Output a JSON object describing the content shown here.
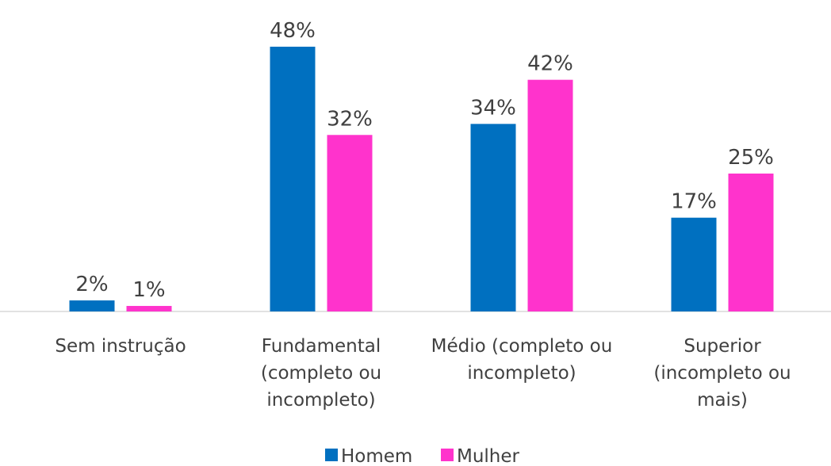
{
  "chart_data": {
    "type": "bar",
    "categories": [
      "Sem instrução",
      "Fundamental (completo ou incompleto)",
      "Médio (completo ou incompleto)",
      "Superior (incompleto ou mais)"
    ],
    "series": [
      {
        "name": "Homem",
        "color": "#0070c0",
        "values": [
          2,
          48,
          34,
          17
        ],
        "value_labels": [
          "2%",
          "48%",
          "34%",
          "17%"
        ]
      },
      {
        "name": "Mulher",
        "color": "#ff33cc",
        "values": [
          1,
          32,
          42,
          25
        ],
        "value_labels": [
          "1%",
          "32%",
          "42%",
          "25%"
        ]
      }
    ],
    "legend": "bottom"
  }
}
